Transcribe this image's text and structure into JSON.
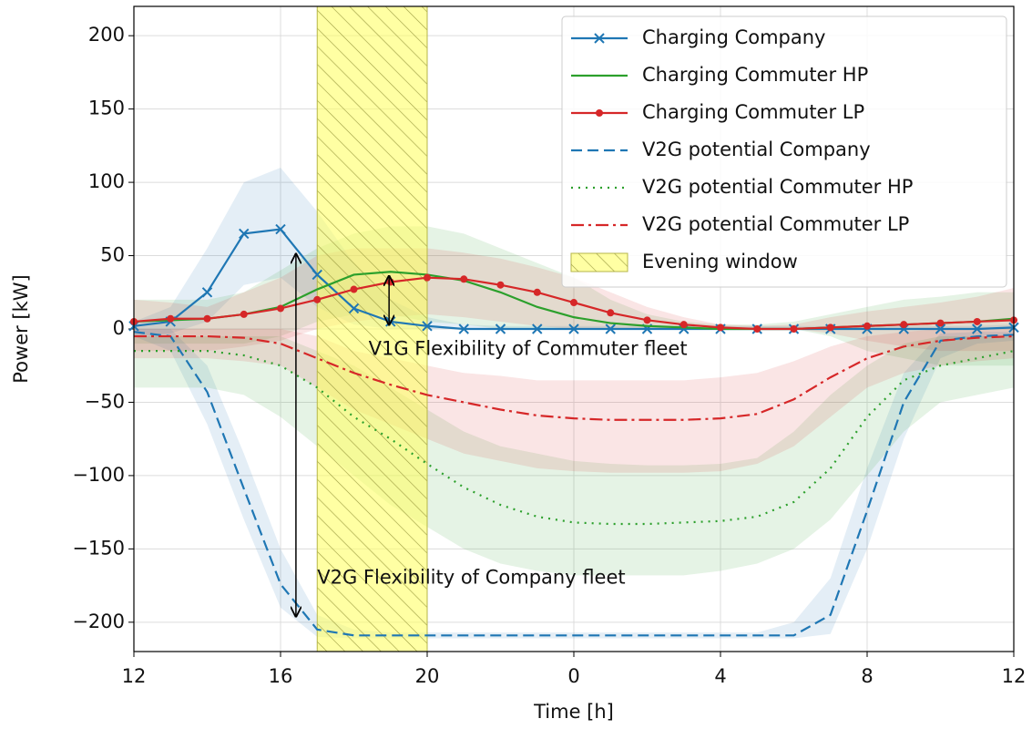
{
  "chart_data": {
    "type": "line",
    "xlabel": "Time [h]",
    "ylabel": "Power [kW]",
    "x": [
      12,
      13,
      14,
      15,
      16,
      17,
      18,
      19,
      20,
      21,
      22,
      23,
      24,
      25,
      26,
      27,
      28,
      29,
      30,
      31,
      32,
      33,
      34,
      35,
      36
    ],
    "xlim": [
      12,
      36
    ],
    "xticks": [
      12,
      16,
      20,
      {
        "value": 24,
        "label": "0"
      },
      {
        "value": 28,
        "label": "4"
      },
      {
        "value": 32,
        "label": "8"
      },
      {
        "value": 36,
        "label": "12"
      }
    ],
    "ylim": [
      -220,
      220
    ],
    "yticks": [
      {
        "value": -200,
        "label": "−200"
      },
      {
        "value": -150,
        "label": "−150"
      },
      {
        "value": -100,
        "label": "−100"
      },
      {
        "value": -50,
        "label": "−50"
      },
      0,
      50,
      100,
      150,
      200
    ],
    "grid": true,
    "legend": "upper right",
    "series": [
      {
        "name": "Charging Company",
        "color": "#1f77b4",
        "dash": "solid",
        "marker": "x",
        "values": [
          2,
          5,
          25,
          65,
          68,
          37,
          14,
          5,
          2,
          0,
          0,
          0,
          0,
          0,
          0,
          0,
          0,
          0,
          0,
          0,
          0,
          0,
          0,
          0,
          1
        ],
        "band_upper": [
          5,
          15,
          55,
          100,
          110,
          80,
          45,
          20,
          8,
          3,
          2,
          2,
          2,
          2,
          2,
          2,
          2,
          2,
          2,
          2,
          2,
          2,
          2,
          2,
          3
        ],
        "band_lower": [
          -5,
          -3,
          5,
          30,
          35,
          15,
          3,
          0,
          0,
          0,
          0,
          0,
          0,
          0,
          0,
          0,
          0,
          0,
          0,
          0,
          0,
          0,
          0,
          0,
          0
        ]
      },
      {
        "name": "Charging Commuter HP",
        "color": "#2ca02c",
        "dash": "solid",
        "marker": null,
        "values": [
          5,
          6,
          7,
          10,
          15,
          27,
          37,
          39,
          37,
          33,
          25,
          15,
          8,
          4,
          2,
          1,
          0,
          0,
          0,
          1,
          2,
          3,
          4,
          5,
          7
        ],
        "band_upper": [
          20,
          20,
          20,
          25,
          40,
          55,
          65,
          70,
          70,
          65,
          55,
          45,
          35,
          20,
          10,
          5,
          3,
          3,
          5,
          10,
          15,
          20,
          22,
          25,
          25
        ],
        "band_lower": [
          -10,
          -10,
          -10,
          -10,
          -5,
          5,
          10,
          10,
          5,
          3,
          0,
          0,
          0,
          0,
          0,
          0,
          0,
          0,
          0,
          -5,
          -15,
          -20,
          -25,
          -25,
          -25
        ]
      },
      {
        "name": "Charging Commuter LP",
        "color": "#d62728",
        "dash": "solid",
        "marker": "o",
        "values": [
          5,
          7,
          7,
          10,
          14,
          20,
          27,
          32,
          35,
          34,
          30,
          25,
          18,
          11,
          6,
          3,
          1,
          0,
          0,
          1,
          2,
          3,
          4,
          5,
          6
        ],
        "band_upper": [
          20,
          18,
          15,
          25,
          35,
          50,
          55,
          55,
          55,
          52,
          48,
          42,
          35,
          25,
          15,
          8,
          3,
          2,
          3,
          8,
          12,
          15,
          18,
          22,
          28
        ],
        "band_lower": [
          -15,
          -15,
          -15,
          -12,
          -8,
          0,
          5,
          8,
          10,
          8,
          5,
          2,
          0,
          0,
          0,
          0,
          0,
          0,
          0,
          -3,
          -8,
          -12,
          -15,
          -15,
          -15
        ]
      },
      {
        "name": "V2G potential Company",
        "color": "#1f77b4",
        "dash": "dashed",
        "marker": null,
        "values": [
          -2,
          -5,
          -43,
          -109,
          -174,
          -205,
          -209,
          -209,
          -209,
          -209,
          -209,
          -209,
          -209,
          -209,
          -209,
          -209,
          -209,
          -209,
          -209,
          -195,
          -124,
          -50,
          -8,
          -5,
          -4
        ],
        "band_upper": [
          0,
          0,
          -25,
          -85,
          -150,
          -195,
          -205,
          -207,
          -207,
          -207,
          -207,
          -207,
          -207,
          -207,
          -207,
          -207,
          -207,
          -207,
          -200,
          -170,
          -95,
          -30,
          -3,
          -2,
          -2
        ],
        "band_lower": [
          -5,
          -15,
          -65,
          -130,
          -190,
          -210,
          -211,
          -211,
          -211,
          -211,
          -211,
          -211,
          -211,
          -211,
          -211,
          -211,
          -211,
          -211,
          -211,
          -208,
          -150,
          -75,
          -20,
          -10,
          -8
        ]
      },
      {
        "name": "V2G potential Commuter HP",
        "color": "#2ca02c",
        "dash": "dotted",
        "marker": null,
        "values": [
          -15,
          -15,
          -15,
          -18,
          -25,
          -40,
          -60,
          -75,
          -92,
          -108,
          -120,
          -128,
          -132,
          -133,
          -133,
          -132,
          -131,
          -128,
          -118,
          -95,
          -60,
          -35,
          -25,
          -20,
          -15
        ],
        "band_upper": [
          -5,
          -5,
          -5,
          -5,
          -5,
          -15,
          -25,
          -40,
          -55,
          -70,
          -80,
          -85,
          -90,
          -92,
          -93,
          -93,
          -92,
          -88,
          -70,
          -45,
          -25,
          -10,
          -5,
          -5,
          -5
        ],
        "band_lower": [
          -40,
          -40,
          -40,
          -45,
          -60,
          -80,
          -100,
          -120,
          -135,
          -150,
          -160,
          -165,
          -168,
          -168,
          -168,
          -168,
          -165,
          -160,
          -150,
          -130,
          -100,
          -70,
          -50,
          -45,
          -40
        ]
      },
      {
        "name": "V2G potential Commuter LP",
        "color": "#d62728",
        "dash": "dashdot",
        "marker": null,
        "values": [
          -5,
          -5,
          -5,
          -6,
          -10,
          -20,
          -30,
          -38,
          -45,
          -50,
          -55,
          -59,
          -61,
          -62,
          -62,
          -62,
          -61,
          -58,
          -48,
          -33,
          -20,
          -12,
          -8,
          -6,
          -5
        ],
        "band_upper": [
          0,
          0,
          0,
          0,
          0,
          -5,
          -15,
          -20,
          -25,
          -30,
          -32,
          -35,
          -35,
          -35,
          -35,
          -35,
          -33,
          -30,
          -22,
          -12,
          -5,
          -2,
          0,
          0,
          0
        ],
        "band_lower": [
          -20,
          -20,
          -20,
          -22,
          -25,
          -40,
          -55,
          -65,
          -75,
          -85,
          -90,
          -95,
          -97,
          -98,
          -98,
          -98,
          -97,
          -92,
          -80,
          -60,
          -40,
          -30,
          -25,
          -22,
          -20
        ]
      }
    ],
    "evening_window": {
      "label": "Evening window",
      "x": [
        17,
        20
      ],
      "color": "#ffff66"
    },
    "annotations": [
      {
        "text": "V1G Flexibility of Commuter fleet",
        "x": 18.4,
        "y": -14,
        "arrow_x": 18.96,
        "arrow_from": 36,
        "arrow_to": 3
      },
      {
        "text": "V2G Flexibility of Company fleet",
        "x": 17.0,
        "y": -170,
        "arrow_x": 16.42,
        "arrow_from": 51,
        "arrow_to": -196
      }
    ]
  }
}
